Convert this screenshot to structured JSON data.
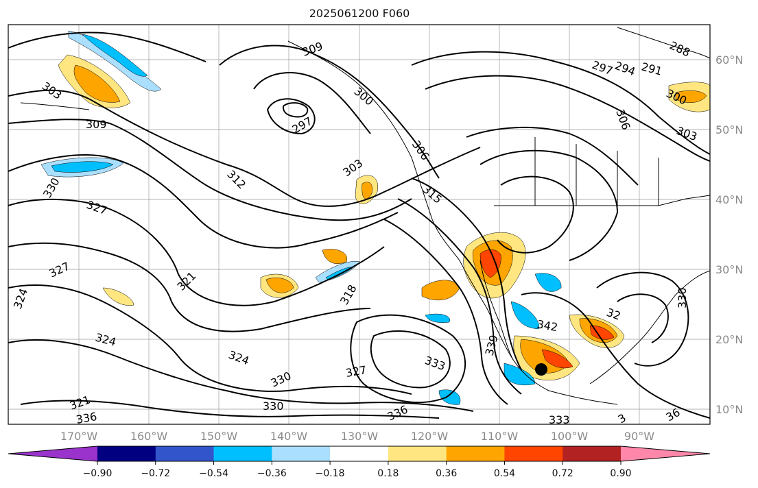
{
  "title": "2025061200 F060",
  "lat_labels": [
    "60°N",
    "50°N",
    "40°N",
    "30°N",
    "20°N",
    "10°N"
  ],
  "lon_labels": [
    "170°W",
    "160°W",
    "150°W",
    "140°W",
    "130°W",
    "120°W",
    "110°W",
    "100°W",
    "90°W"
  ],
  "colorbar": {
    "colors": [
      "#9933cc",
      "#000080",
      "#3355cc",
      "#00bfff",
      "#aadfff",
      "#ffffff",
      "#ffe680",
      "#ffa500",
      "#ff4500",
      "#b22222",
      "#ff88aa"
    ],
    "ticks": [
      "−0.90",
      "−0.72",
      "−0.54",
      "−0.36",
      "−0.18",
      "0.18",
      "0.36",
      "0.54",
      "0.72",
      "0.90"
    ]
  },
  "contour_labels": [
    "303",
    "309",
    "297",
    "309",
    "300",
    "306",
    "312",
    "303",
    "315",
    "291",
    "294",
    "297",
    "288",
    "306",
    "303",
    "300",
    "327",
    "327",
    "324",
    "330",
    "321",
    "324",
    "318",
    "333",
    "327",
    "330",
    "339",
    "342",
    "321",
    "336",
    "330",
    "333",
    "336",
    "323",
    "32",
    "330",
    "39",
    "36",
    "333",
    "3"
  ],
  "marker": "storm-center"
}
